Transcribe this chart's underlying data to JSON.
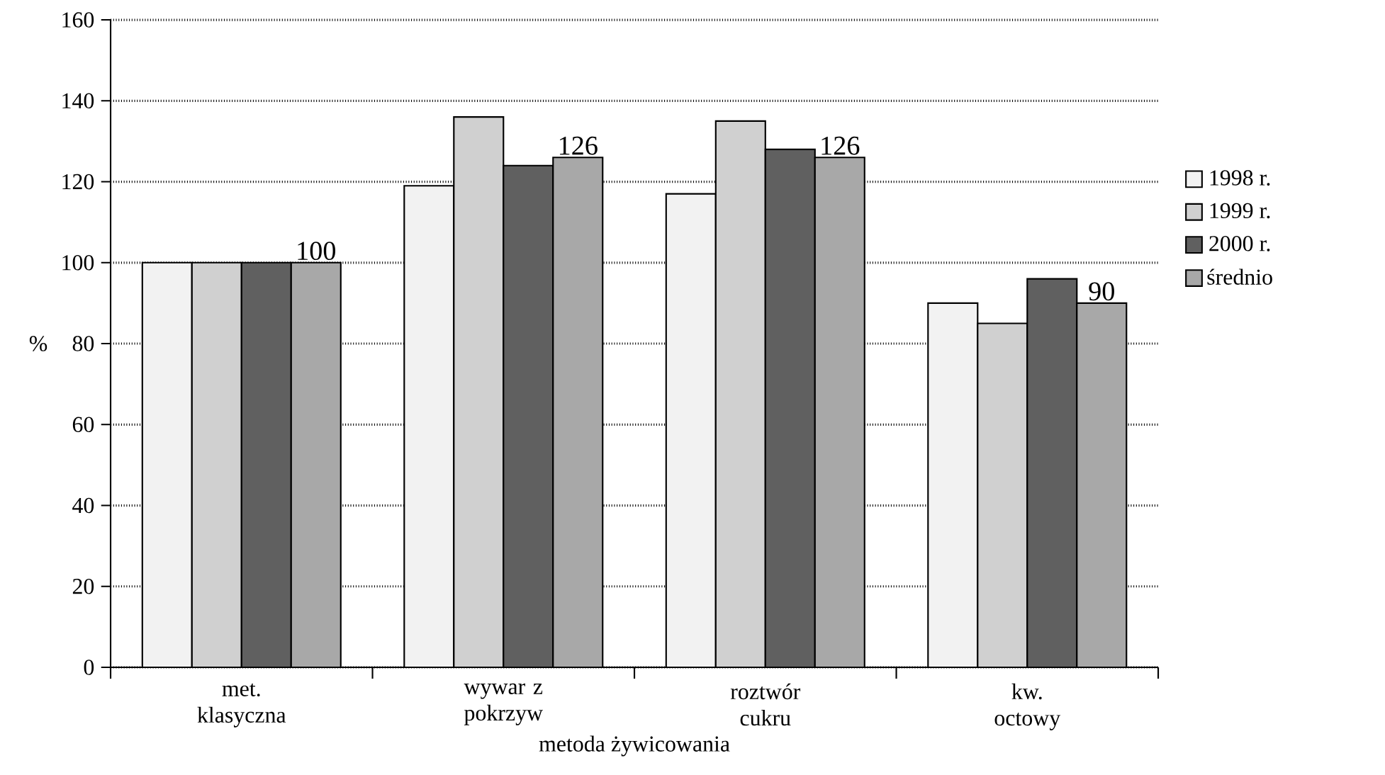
{
  "chart_data": {
    "type": "bar",
    "xlabel": "metoda żywicowania",
    "ylabel": "%",
    "categories": [
      "met. klasyczna",
      "wywar z pokrzyw",
      "roztwór cukru",
      "kw. octowy"
    ],
    "series": [
      {
        "name": "1998 r.",
        "color": "#f2f2f2",
        "values": [
          100,
          119,
          117,
          90
        ]
      },
      {
        "name": "1999 r.",
        "color": "#d0d0d0",
        "values": [
          100,
          136,
          135,
          85
        ]
      },
      {
        "name": "2000 r.",
        "color": "#606060",
        "values": [
          100,
          124,
          128,
          96
        ]
      },
      {
        "name": "średnio",
        "color": "#a8a8a8",
        "values": [
          100,
          126,
          126,
          90
        ],
        "value_labels": [
          "100",
          "126",
          "126",
          "90"
        ]
      }
    ],
    "ylim": [
      0,
      160
    ],
    "yticks": [
      0,
      20,
      40,
      60,
      80,
      100,
      120,
      140,
      160
    ],
    "grid": "y",
    "legend": "right"
  }
}
